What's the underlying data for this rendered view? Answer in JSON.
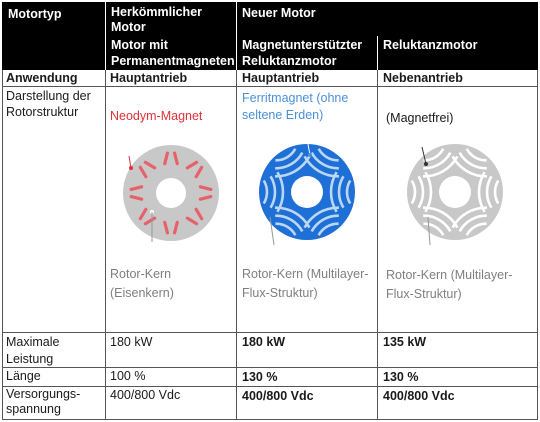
{
  "header": {
    "motortyp": "Motortyp",
    "herkoemmlich": "Herkömmlicher Motor",
    "neuer": "Neuer Motor",
    "col1_sub": "Motor mit Permanentmagneten",
    "col2_sub": "Magnetunterstützter Reluktanzmotor",
    "col3_sub": "Reluktanzmotor"
  },
  "rows": {
    "anwendung": {
      "label": "Anwendung",
      "c1": "Hauptantrieb",
      "c2": "Hauptantrieb",
      "c3": "Nebenantrieb"
    },
    "darstellung": {
      "label": "Darstellung der Rotorstruktur",
      "c1_top": "Neodym-Magnet",
      "c1_bottom": "Rotor-Kern (Eisenkern)",
      "c2_top": "Ferritmagnet (ohne seltene Erden)",
      "c2_bottom": "Rotor-Kern (Multilayer-Flux-Struktur)",
      "c3_top": "(Magnetfrei)",
      "c3_bottom": "Rotor-Kern (Multilayer-Flux-Struktur)"
    },
    "leistung": {
      "label": "Maximale Leistung",
      "c1": "180 kW",
      "c2": "180 kW",
      "c3": "135 kW"
    },
    "laenge": {
      "label": "Länge",
      "c1": "100 %",
      "c2": "130 %",
      "c3": "130 %"
    },
    "spannung": {
      "label": "Versorgungs-spannung",
      "c1": "400/800 Vdc",
      "c2": "400/800 Vdc",
      "c3": "400/800 Vdc"
    }
  },
  "colors": {
    "header_bg": "#000000",
    "neodym": "#e0303a",
    "ferrit": "#4a90d9",
    "rotor_grey": "#c8c8c8",
    "rotor_blue": "#1e6fd6"
  }
}
